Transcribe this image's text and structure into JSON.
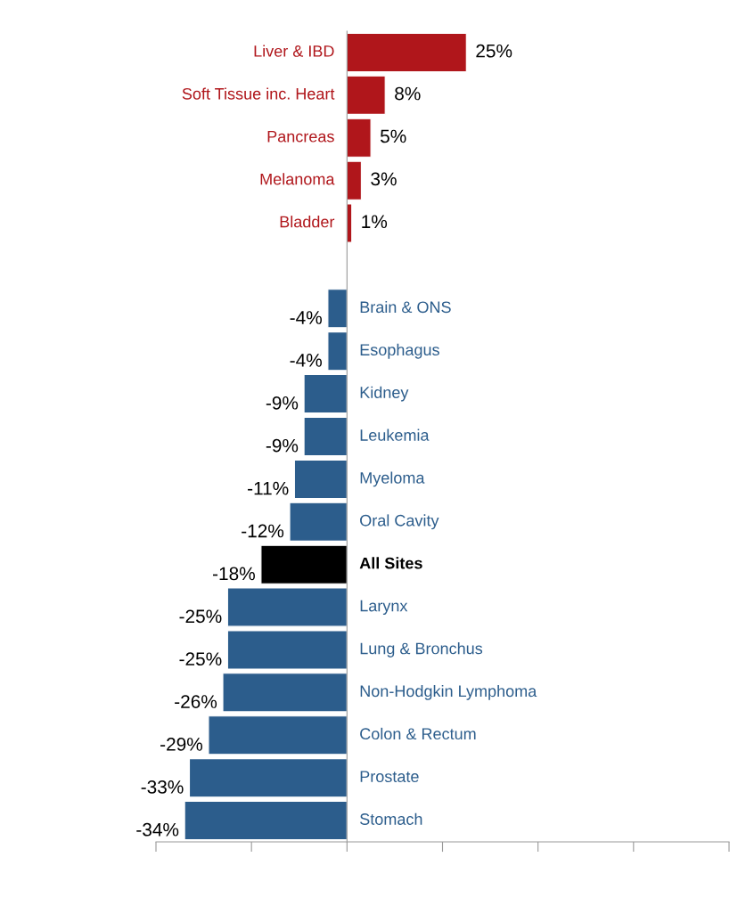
{
  "chart_data": {
    "type": "bar",
    "orientation": "horizontal",
    "categories": [
      "Liver & IBD",
      "Soft Tissue inc. Heart",
      "Pancreas",
      "Melanoma",
      "Bladder",
      null,
      "Brain & ONS",
      "Esophagus",
      "Kidney",
      "Leukemia",
      "Myeloma",
      "Oral Cavity",
      "All Sites",
      "Larynx",
      "Lung & Bronchus",
      "Non-Hodgkin Lymphoma",
      "Colon & Rectum",
      "Prostate",
      "Stomach"
    ],
    "values": [
      25,
      8,
      5,
      3,
      1,
      null,
      -4,
      -4,
      -9,
      -9,
      -11,
      -12,
      -18,
      -25,
      -25,
      -26,
      -29,
      -33,
      -34
    ],
    "value_labels": [
      "25%",
      "8%",
      "5%",
      "3%",
      "1%",
      null,
      "-4%",
      "-4%",
      "-9%",
      "-9%",
      "-11%",
      "-12%",
      "-18%",
      "-25%",
      "-25%",
      "-26%",
      "-29%",
      "-33%",
      "-34%"
    ],
    "colors": [
      "#b0161b",
      "#b0161b",
      "#b0161b",
      "#b0161b",
      "#b0161b",
      null,
      "#2c5d8c",
      "#2c5d8c",
      "#2c5d8c",
      "#2c5d8c",
      "#2c5d8c",
      "#2c5d8c",
      "#000000",
      "#2c5d8c",
      "#2c5d8c",
      "#2c5d8c",
      "#2c5d8c",
      "#2c5d8c",
      "#2c5d8c"
    ],
    "xlim": [
      -40,
      80
    ],
    "xticks": [
      {
        "value": -40,
        "label": null
      },
      {
        "value": -20,
        "label": null
      },
      {
        "value": 0,
        "label": null
      },
      {
        "value": 20,
        "label": null
      },
      {
        "value": 40,
        "label": null
      },
      {
        "value": 60,
        "label": null
      },
      {
        "value": 80,
        "label": null
      }
    ],
    "grid": false,
    "legend": false
  }
}
